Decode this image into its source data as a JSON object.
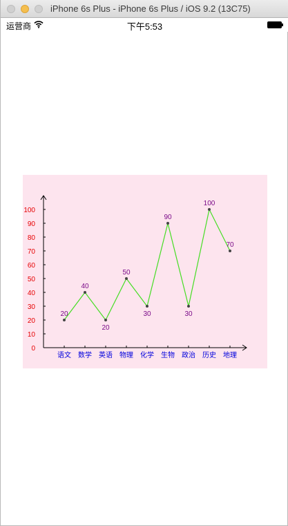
{
  "window": {
    "title": "iPhone 6s Plus - iPhone 6s Plus / iOS 9.2 (13C75)"
  },
  "status_bar": {
    "carrier": "运营商",
    "time": "下午5:53",
    "wifi_icon": "wifi-icon",
    "battery_icon": "battery-icon"
  },
  "chart_data": {
    "type": "line",
    "title": "",
    "xlabel": "",
    "ylabel": "",
    "categories": [
      "语文",
      "数学",
      "英语",
      "物理",
      "化学",
      "生物",
      "政治",
      "历史",
      "地理"
    ],
    "series": [
      {
        "values": [
          20,
          40,
          20,
          50,
          30,
          90,
          30,
          100,
          70
        ]
      }
    ],
    "data_labels": [
      "20",
      "40",
      "20",
      "50",
      "30",
      "90",
      "30",
      "100",
      "70"
    ],
    "y_ticks": [
      "0",
      "10",
      "20",
      "30",
      "40",
      "50",
      "60",
      "70",
      "80",
      "90",
      "100"
    ],
    "ylim": [
      0,
      100
    ],
    "grid": false,
    "legend": "none",
    "colors": {
      "background": "#fde4ee",
      "line": "#44dd22",
      "point": "#444444",
      "y_tick_label": "#e60000",
      "x_tick_label": "#0000dd",
      "data_label": "#7a0a88",
      "axis": "#000000"
    }
  }
}
